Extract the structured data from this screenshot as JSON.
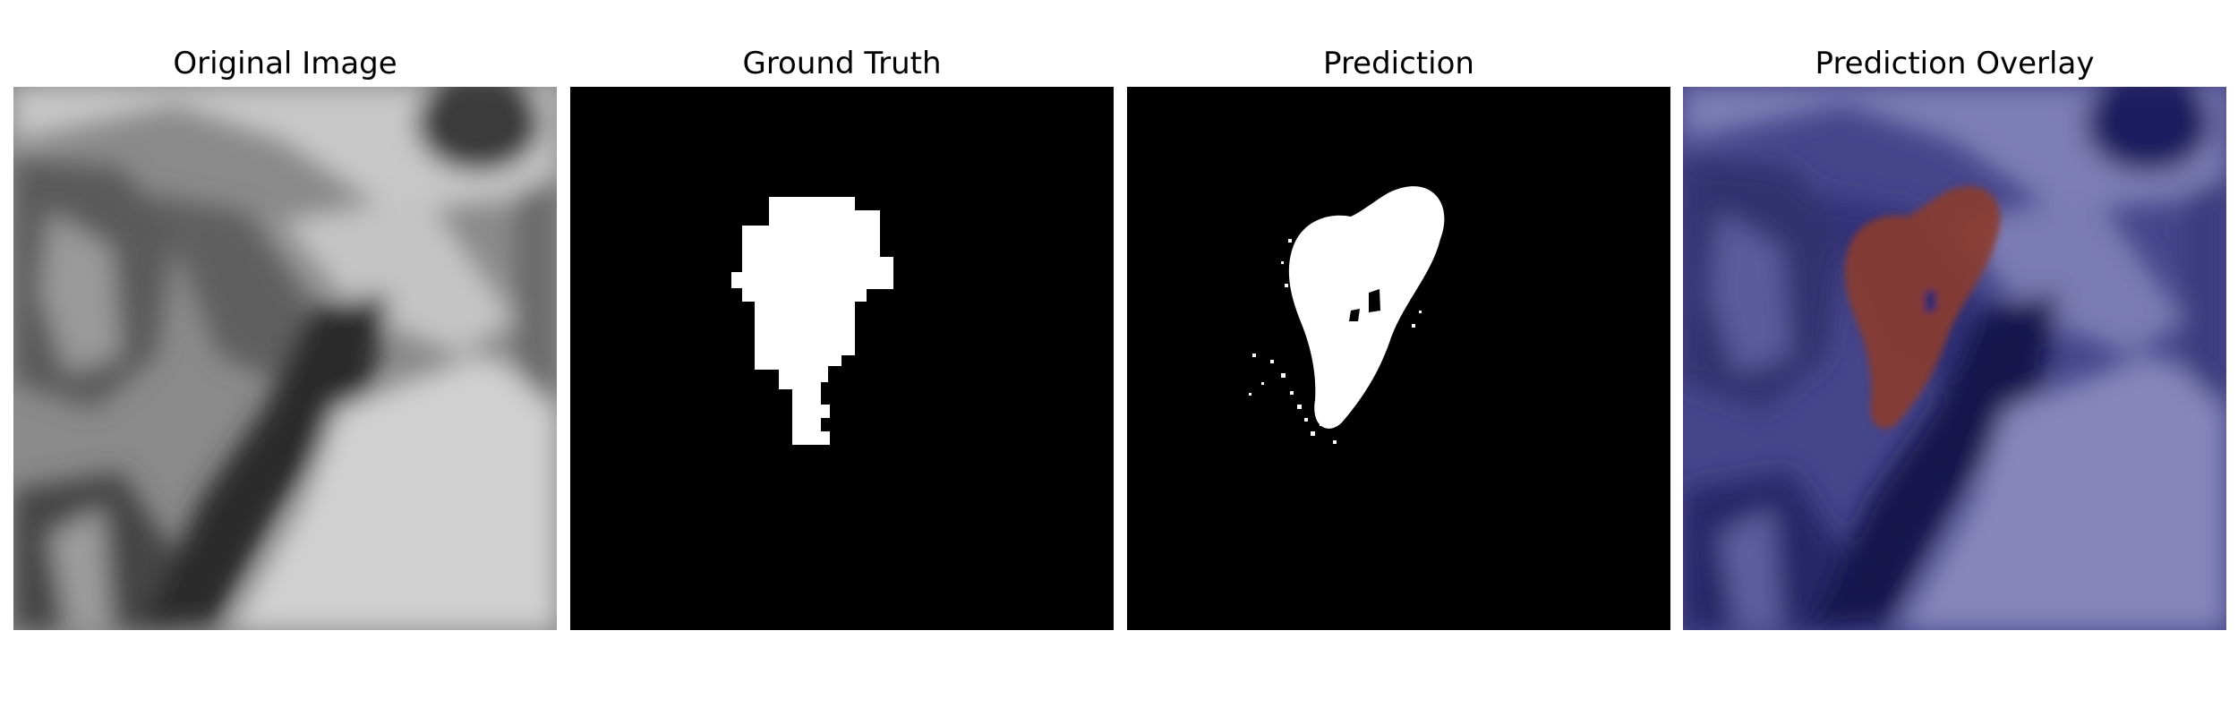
{
  "panels": [
    {
      "title": "Original Image",
      "icon": "grayscale-mri-image"
    },
    {
      "title": "Ground Truth",
      "icon": "binary-mask-image"
    },
    {
      "title": "Prediction",
      "icon": "predicted-mask-image"
    },
    {
      "title": "Prediction Overlay",
      "icon": "overlay-image"
    }
  ],
  "colors": {
    "background": "#ffffff",
    "mask": "#ffffff",
    "mask_background": "#000000",
    "overlay_tint": "#1c1c8f",
    "overlay_prediction": "#8b3a2f"
  }
}
